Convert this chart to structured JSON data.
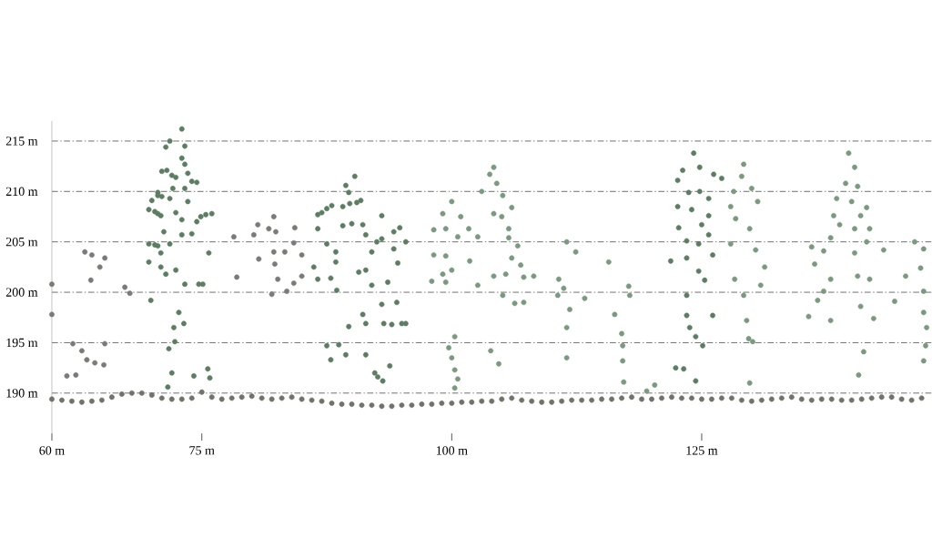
{
  "chart_data": {
    "type": "scatter",
    "marker": "circle",
    "grid": "y",
    "xlim": [
      60,
      148
    ],
    "ylim": [
      186,
      217
    ],
    "xticks": [
      {
        "value": 60,
        "label": "60 m"
      },
      {
        "value": 75,
        "label": "75 m"
      },
      {
        "value": 100,
        "label": "100 m"
      },
      {
        "value": 125,
        "label": "125 m"
      }
    ],
    "yticks": [
      {
        "value": 190,
        "label": "190 m"
      },
      {
        "value": 195,
        "label": "195 m"
      },
      {
        "value": 200,
        "label": "200 m"
      },
      {
        "value": 205,
        "label": "205 m"
      },
      {
        "value": 210,
        "label": "210 m"
      },
      {
        "value": 215,
        "label": "215 m"
      }
    ],
    "series": [
      {
        "color": "#6f7369",
        "x": [
          60,
          61,
          62,
          63,
          64,
          65,
          66,
          67,
          68,
          69,
          70,
          71,
          72,
          73,
          74,
          75,
          76,
          77,
          78,
          79,
          80,
          81,
          82,
          83,
          84,
          85,
          86,
          87,
          88,
          89,
          90,
          91,
          92,
          93,
          94,
          95,
          96,
          97,
          98,
          99,
          100,
          101,
          102,
          103,
          104,
          105,
          106,
          107,
          108,
          109,
          110,
          111,
          112,
          113,
          114,
          115,
          116,
          117,
          118,
          119,
          120,
          121,
          122,
          123,
          124,
          125,
          126,
          127,
          128,
          129,
          130,
          131,
          132,
          133,
          134,
          135,
          136,
          137,
          138,
          139,
          140,
          141,
          142,
          143,
          144,
          145,
          146,
          147
        ],
        "values": [
          189.4,
          189.3,
          189.2,
          189.1,
          189.2,
          189.3,
          189.6,
          189.9,
          190.0,
          190.0,
          189.8,
          189.5,
          189.4,
          189.4,
          189.5,
          190.1,
          189.6,
          189.4,
          189.5,
          189.6,
          189.7,
          189.5,
          189.4,
          189.5,
          189.6,
          189.4,
          189.3,
          189.2,
          189.0,
          188.9,
          188.9,
          188.8,
          188.8,
          188.7,
          188.7,
          188.8,
          188.8,
          188.9,
          188.9,
          189.0,
          189.0,
          189.1,
          189.1,
          189.2,
          189.2,
          189.4,
          189.5,
          189.3,
          189.2,
          189.1,
          189.1,
          189.2,
          189.3,
          189.3,
          189.3,
          189.4,
          189.4,
          189.5,
          189.6,
          189.4,
          189.4,
          189.5,
          189.6,
          189.5,
          189.5,
          189.4,
          189.4,
          189.5,
          189.5,
          189.3,
          189.2,
          189.3,
          189.4,
          189.5,
          189.6,
          189.4,
          189.3,
          189.4,
          189.4,
          189.3,
          189.3,
          189.4,
          189.5,
          189.6,
          189.6,
          189.4,
          189.3,
          189.5
        ]
      },
      {
        "color": "#7a7a76",
        "x": [
          60.0,
          60.0,
          62.1,
          63.0,
          63.5,
          64.3,
          65.2,
          61.5,
          62.4,
          63.3,
          64.0,
          63.9,
          64.8,
          65.3,
          67.3,
          67.8,
          65.3,
          78.2,
          78.5,
          80.6,
          80.2,
          81.7,
          82.2,
          82.4,
          80.7,
          82.2,
          82.3,
          82.6,
          82.0,
          83.5,
          84.2,
          85.0,
          83.3,
          84.2,
          84.3,
          85.0
        ],
        "values": [
          200.8,
          197.8,
          194.9,
          194.2,
          193.3,
          193.0,
          192.8,
          191.7,
          191.8,
          204.0,
          203.7,
          201.2,
          202.5,
          203.4,
          200.5,
          199.9,
          194.9,
          205.5,
          201.5,
          206.7,
          205.7,
          206.3,
          207.5,
          206.0,
          203.3,
          204.0,
          202.8,
          201.3,
          199.8,
          200.1,
          200.9,
          201.6,
          204.0,
          204.9,
          206.4,
          203.7
        ]
      },
      {
        "color": "#5d7d63",
        "x": [
          73.0,
          71.8,
          73.3,
          71.4,
          73.0,
          73.3,
          71.5,
          72.4,
          73.6,
          74.5,
          70.6,
          72.1,
          73.3,
          70.0,
          71.8,
          73.6,
          69.7,
          70.9,
          72.4,
          73.0,
          74.5,
          76.0,
          71.2,
          70.6,
          71.8,
          69.7,
          70.9,
          73.0,
          74.0,
          75.7,
          69.7,
          70.9,
          71.4,
          72.4,
          73.3,
          75.1,
          69.9,
          72.7,
          73.2,
          72.2,
          72.3,
          71.7,
          72.0,
          71.6,
          74.2,
          75.6,
          75.8,
          70.3,
          70.6,
          70.6,
          71.0,
          71.0,
          72.0,
          74.0,
          74.9,
          75.4,
          70.3,
          74.7,
          90.3,
          89.4,
          89.7,
          89.1,
          90.9,
          86.6,
          87.5,
          93.0,
          94.8,
          86.6,
          89.1,
          91.1,
          91.4,
          94.2,
          95.4,
          87.5,
          88.4,
          92.0,
          94.2,
          94.6,
          86.2,
          88.4,
          91.4,
          87.9,
          86.6,
          92.0,
          93.6,
          88.5,
          93.0,
          94.5,
          91.1,
          91.4,
          93.2,
          95.4,
          89.7,
          87.5,
          88.7,
          91.4,
          87.9,
          92.3,
          93.1,
          93.8,
          89.4,
          87.0,
          88.0,
          89.8,
          90.5,
          90.0,
          92.5,
          93.0,
          90.7,
          95.0,
          94.0,
          92.6,
          124.2,
          124.8,
          123.1,
          126.2,
          127.0,
          122.6,
          124.8,
          123.7,
          125.7,
          122.6,
          124.0,
          125.7,
          122.7,
          125.0,
          123.5,
          124.7,
          125.7,
          121.9,
          123.5,
          126.1,
          124.7,
          125.3,
          123.5,
          123.5,
          126.1,
          123.8,
          124.4,
          125.1,
          123.2,
          122.4,
          124.4
        ],
        "values": [
          216.2,
          215.0,
          214.5,
          214.4,
          213.3,
          212.7,
          212.1,
          211.4,
          211.8,
          210.9,
          209.9,
          210.3,
          210.3,
          209.1,
          209.3,
          209.0,
          208.2,
          207.6,
          207.9,
          207.2,
          207.0,
          207.8,
          206.0,
          204.6,
          204.8,
          204.8,
          203.9,
          205.7,
          205.8,
          203.9,
          203.0,
          202.5,
          201.8,
          202.2,
          200.8,
          200.8,
          199.2,
          198.0,
          196.9,
          196.5,
          195.1,
          194.4,
          192.0,
          190.6,
          191.7,
          192.4,
          191.5,
          208.0,
          207.8,
          209.6,
          209.5,
          212.0,
          211.6,
          211.0,
          207.5,
          207.7,
          204.7,
          200.8,
          211.5,
          210.6,
          209.9,
          208.5,
          209.1,
          207.7,
          208.3,
          207.6,
          206.4,
          206.3,
          206.6,
          206.7,
          205.7,
          206.0,
          205.0,
          204.8,
          204.0,
          204.0,
          204.3,
          202.9,
          202.5,
          203.0,
          202.2,
          201.4,
          201.3,
          200.7,
          201.0,
          200.2,
          198.8,
          199.0,
          197.8,
          196.9,
          196.9,
          196.9,
          196.6,
          194.7,
          194.8,
          193.8,
          193.3,
          192.0,
          191.2,
          192.7,
          193.8,
          207.9,
          208.6,
          208.8,
          208.9,
          206.8,
          205.0,
          205.3,
          202.0,
          196.9,
          196.8,
          191.6,
          213.8,
          212.4,
          212.1,
          211.7,
          211.3,
          211.1,
          210.0,
          209.9,
          209.3,
          208.5,
          208.2,
          207.6,
          206.4,
          206.7,
          205.1,
          204.8,
          205.7,
          203.1,
          203.4,
          203.7,
          202.1,
          201.2,
          199.7,
          197.7,
          197.7,
          196.5,
          195.6,
          194.7,
          192.4,
          192.5,
          191.2
        ]
      },
      {
        "color": "#7a997f",
        "x": [
          100.0,
          100.9,
          98.2,
          99.4,
          99.1,
          101.7,
          100.6,
          98.2,
          99.4,
          101.8,
          100.0,
          99.1,
          98.0,
          99.4,
          100.3,
          99.7,
          100.0,
          100.3,
          100.3,
          100.6,
          104.2,
          103.8,
          104.5,
          103.0,
          105.1,
          106.0,
          104.2,
          105.0,
          102.6,
          105.7,
          105.7,
          106.6,
          106.0,
          106.9,
          107.2,
          108.2,
          105.4,
          104.2,
          102.6,
          105.1,
          106.3,
          107.2,
          111.5,
          112.4,
          110.7,
          111.2,
          113.3,
          110.6,
          111.8,
          111.5,
          111.5,
          115.7,
          116.3,
          103.9,
          104.7,
          117.7,
          117.8,
          117.0,
          117.1,
          117.1,
          117.2,
          120.3,
          119.5,
          129.2,
          129.0,
          130.0,
          128.2,
          130.6,
          127.9,
          128.4,
          129.8,
          127.9,
          130.4,
          131.3,
          128.3,
          130.9,
          129.2,
          129.5,
          129.7,
          130.1,
          129.8,
          139.7,
          140.3,
          139.4,
          140.6,
          138.5,
          140.0,
          141.5,
          138.2,
          140.9,
          138.8,
          140.3,
          141.8,
          137.9,
          136.0,
          137.2,
          136.3,
          140.3,
          141.5,
          141.8,
          140.6,
          143.2,
          137.9,
          137.2,
          136.6,
          135.7,
          137.9,
          140.9,
          142.2,
          144.3,
          141.2,
          140.7,
          146.3,
          147.2,
          145.4,
          146.9,
          147.2,
          147.2,
          147.5,
          147.4,
          147.2
        ],
        "values": [
          209.0,
          207.5,
          206.2,
          206.3,
          207.8,
          206.3,
          205.5,
          203.7,
          203.6,
          203.1,
          202.2,
          201.8,
          201.1,
          201.0,
          195.6,
          194.5,
          193.5,
          192.3,
          190.5,
          191.4,
          212.4,
          211.7,
          210.8,
          210.0,
          209.6,
          208.4,
          207.8,
          207.5,
          205.5,
          206.3,
          205.4,
          204.6,
          203.4,
          202.7,
          201.5,
          201.6,
          201.8,
          201.6,
          200.7,
          199.7,
          198.9,
          199.0,
          205.0,
          204.0,
          201.3,
          200.4,
          199.4,
          199.7,
          198.3,
          196.5,
          193.5,
          203.0,
          197.8,
          194.2,
          192.9,
          200.6,
          199.7,
          195.9,
          194.7,
          193.2,
          191.1,
          190.8,
          190.2,
          212.7,
          211.5,
          210.3,
          210.0,
          209.0,
          208.5,
          207.3,
          206.3,
          204.8,
          204.2,
          202.5,
          201.3,
          200.7,
          199.7,
          197.2,
          195.4,
          195.1,
          191.0,
          213.8,
          212.4,
          210.8,
          210.5,
          209.3,
          209.0,
          208.4,
          207.6,
          207.6,
          206.7,
          206.3,
          206.3,
          205.4,
          204.5,
          204.1,
          202.8,
          203.9,
          205.0,
          201.3,
          201.6,
          204.2,
          201.3,
          200.1,
          199.2,
          197.6,
          197.2,
          198.6,
          197.4,
          199.1,
          194.1,
          191.8,
          205.0,
          204.3,
          201.6,
          202.4,
          200.1,
          198.0,
          196.5,
          194.7,
          193.2
        ]
      }
    ]
  }
}
